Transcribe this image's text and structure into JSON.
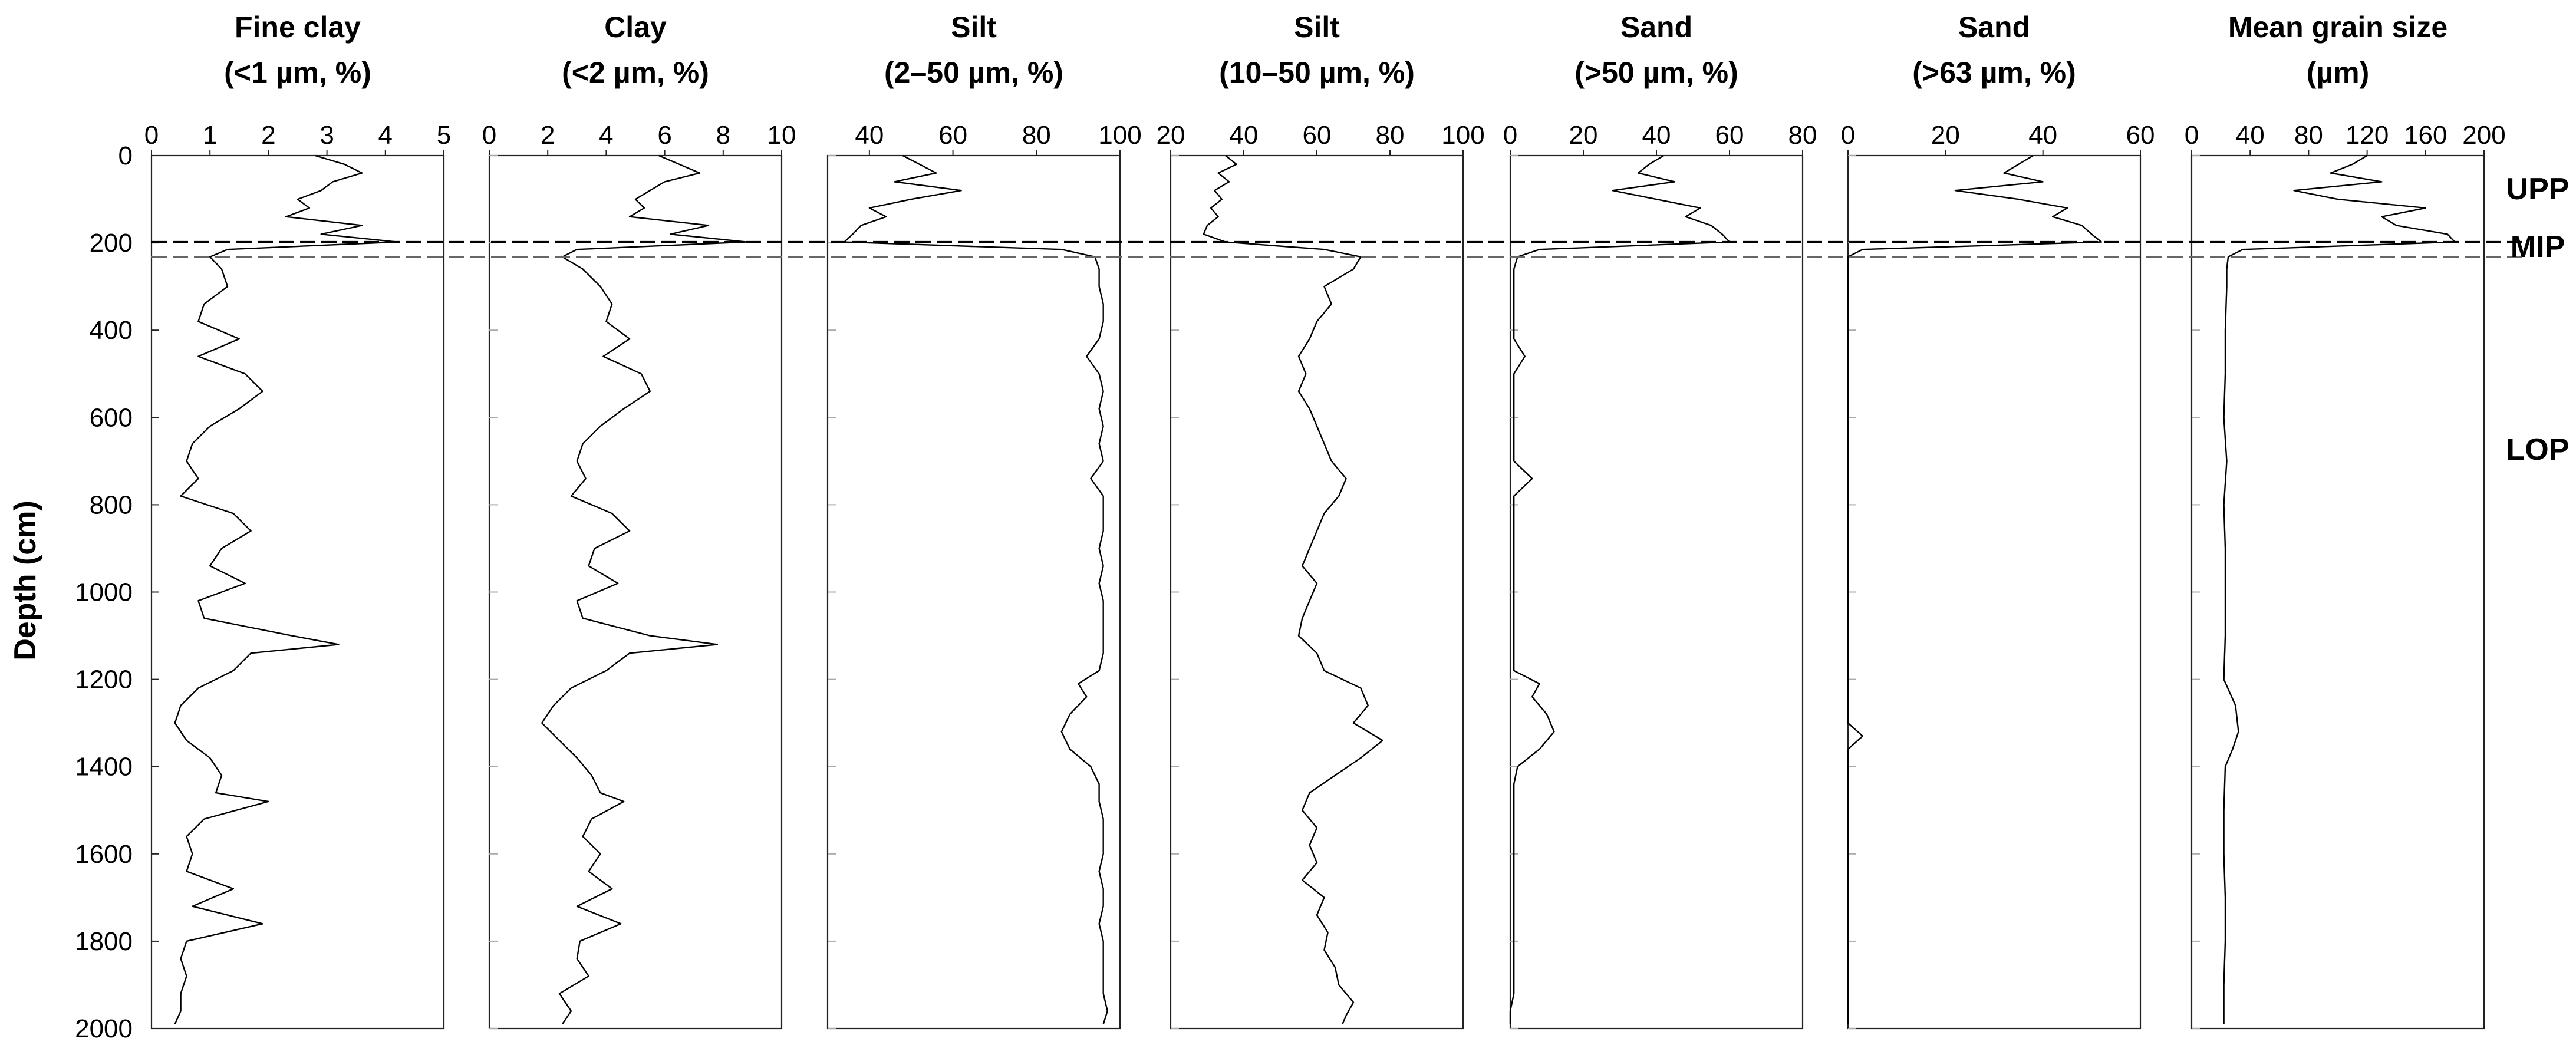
{
  "figure": {
    "ylabel": "Depth (cm)",
    "y_ticks": [
      0,
      200,
      400,
      600,
      800,
      1000,
      1200,
      1400,
      1600,
      1800,
      2000
    ],
    "zones": [
      {
        "label": "UPP",
        "depth": 80
      },
      {
        "label": "MIP",
        "depth": 215
      },
      {
        "label": "LOP",
        "depth": 680
      }
    ],
    "boundaries": [
      {
        "depth": 198,
        "style": "dashed",
        "color": "#000000"
      },
      {
        "depth": 232,
        "style": "dashed",
        "color": "#000000"
      }
    ],
    "line_color": "#000000",
    "gray_tick_color": "#aaaaaa"
  },
  "chart_data": [
    {
      "type": "line",
      "title_line1": "Fine clay",
      "title_line2": "(<1 µm, %)",
      "xlim": [
        0,
        5
      ],
      "x_ticks": [
        0,
        1,
        2,
        3,
        4,
        5
      ],
      "ylim": [
        2000,
        0
      ],
      "series": [
        {
          "depth": [
            0,
            20,
            40,
            60,
            80,
            100,
            120,
            140,
            160,
            180,
            198,
            215,
            232,
            260,
            300,
            340,
            380,
            420,
            460,
            500,
            540,
            580,
            620,
            660,
            700,
            740,
            780,
            820,
            860,
            900,
            940,
            980,
            1020,
            1060,
            1100,
            1120,
            1140,
            1180,
            1220,
            1260,
            1300,
            1340,
            1380,
            1420,
            1460,
            1480,
            1520,
            1560,
            1600,
            1640,
            1680,
            1720,
            1760,
            1800,
            1840,
            1880,
            1920,
            1960,
            1990
          ],
          "value": [
            2.8,
            3.3,
            3.6,
            3.1,
            2.9,
            2.5,
            2.7,
            2.3,
            3.6,
            2.9,
            4.2,
            1.3,
            1.0,
            1.2,
            1.3,
            0.9,
            0.8,
            1.5,
            0.8,
            1.6,
            1.9,
            1.5,
            1.0,
            0.7,
            0.6,
            0.8,
            0.5,
            1.4,
            1.7,
            1.2,
            1.0,
            1.6,
            0.8,
            0.9,
            2.4,
            3.2,
            1.7,
            1.4,
            0.8,
            0.5,
            0.4,
            0.6,
            1.0,
            1.2,
            1.1,
            2.0,
            0.9,
            0.6,
            0.7,
            0.6,
            1.4,
            0.7,
            1.9,
            0.6,
            0.5,
            0.6,
            0.5,
            0.5,
            0.4
          ]
        }
      ]
    },
    {
      "type": "line",
      "title_line1": "Clay",
      "title_line2": "(<2 µm, %)",
      "xlim": [
        0,
        10
      ],
      "x_ticks": [
        0,
        2,
        4,
        6,
        8,
        10
      ],
      "ylim": [
        2000,
        0
      ],
      "series": [
        {
          "depth": [
            0,
            20,
            40,
            60,
            80,
            100,
            120,
            140,
            160,
            180,
            198,
            215,
            232,
            260,
            300,
            340,
            380,
            420,
            460,
            500,
            540,
            580,
            620,
            660,
            700,
            740,
            780,
            820,
            860,
            900,
            940,
            980,
            1020,
            1060,
            1100,
            1120,
            1140,
            1180,
            1220,
            1260,
            1300,
            1340,
            1380,
            1420,
            1460,
            1480,
            1520,
            1560,
            1600,
            1640,
            1680,
            1720,
            1760,
            1800,
            1840,
            1880,
            1920,
            1960,
            1990
          ],
          "value": [
            5.8,
            6.5,
            7.2,
            6.0,
            5.5,
            5.0,
            5.3,
            4.8,
            7.5,
            6.2,
            8.8,
            3.0,
            2.5,
            3.2,
            3.8,
            4.2,
            4.0,
            4.8,
            3.9,
            5.2,
            5.5,
            4.6,
            3.8,
            3.2,
            3.0,
            3.3,
            2.8,
            4.2,
            4.8,
            3.6,
            3.4,
            4.4,
            3.0,
            3.2,
            5.5,
            7.8,
            4.8,
            4.0,
            2.8,
            2.2,
            1.8,
            2.4,
            3.0,
            3.5,
            3.8,
            4.6,
            3.5,
            3.2,
            3.8,
            3.4,
            4.2,
            3.0,
            4.5,
            3.1,
            3.0,
            3.4,
            2.4,
            2.8,
            2.5
          ]
        }
      ]
    },
    {
      "type": "line",
      "title_line1": "Silt",
      "title_line2": "(2–50 µm, %)",
      "xlim": [
        30,
        100
      ],
      "x_ticks": [
        40,
        60,
        80,
        100
      ],
      "ylim": [
        2000,
        0
      ],
      "series": [
        {
          "depth": [
            0,
            20,
            40,
            60,
            80,
            100,
            120,
            140,
            160,
            180,
            198,
            215,
            232,
            260,
            300,
            340,
            380,
            420,
            460,
            500,
            540,
            580,
            620,
            660,
            700,
            740,
            780,
            820,
            860,
            900,
            940,
            980,
            1020,
            1060,
            1100,
            1140,
            1180,
            1210,
            1240,
            1280,
            1320,
            1360,
            1400,
            1440,
            1480,
            1520,
            1560,
            1600,
            1640,
            1680,
            1720,
            1760,
            1800,
            1840,
            1880,
            1920,
            1960,
            1990
          ],
          "value": [
            48,
            52,
            56,
            46,
            62,
            50,
            40,
            44,
            38,
            36,
            34,
            86,
            94,
            95,
            95,
            96,
            96,
            95,
            92,
            95,
            96,
            95,
            96,
            95,
            96,
            93,
            96,
            96,
            96,
            95,
            96,
            95,
            96,
            96,
            96,
            96,
            95,
            90,
            92,
            88,
            86,
            88,
            93,
            95,
            95,
            96,
            96,
            96,
            95,
            96,
            96,
            95,
            96,
            96,
            96,
            96,
            97,
            96
          ]
        }
      ]
    },
    {
      "type": "line",
      "title_line1": "Silt",
      "title_line2": "(10–50 µm, %)",
      "xlim": [
        20,
        100
      ],
      "x_ticks": [
        20,
        40,
        60,
        80,
        100
      ],
      "ylim": [
        2000,
        0
      ],
      "series": [
        {
          "depth": [
            0,
            20,
            40,
            60,
            80,
            100,
            120,
            140,
            160,
            180,
            198,
            215,
            232,
            260,
            300,
            340,
            380,
            420,
            460,
            500,
            540,
            580,
            620,
            660,
            700,
            740,
            780,
            820,
            860,
            900,
            940,
            980,
            1020,
            1060,
            1100,
            1140,
            1180,
            1220,
            1260,
            1300,
            1340,
            1380,
            1420,
            1460,
            1500,
            1540,
            1580,
            1620,
            1660,
            1700,
            1740,
            1780,
            1820,
            1860,
            1900,
            1940,
            1970,
            1990
          ],
          "value": [
            35,
            38,
            33,
            36,
            32,
            34,
            31,
            33,
            30,
            29,
            35,
            62,
            72,
            70,
            62,
            64,
            60,
            58,
            55,
            57,
            55,
            58,
            60,
            62,
            64,
            68,
            66,
            62,
            60,
            58,
            56,
            60,
            58,
            56,
            55,
            60,
            62,
            72,
            74,
            70,
            78,
            72,
            65,
            58,
            56,
            60,
            58,
            60,
            56,
            62,
            60,
            63,
            62,
            65,
            66,
            70,
            68,
            67
          ]
        }
      ]
    },
    {
      "type": "line",
      "title_line1": "Sand",
      "title_line2": "(>50 µm, %)",
      "xlim": [
        0,
        80
      ],
      "x_ticks": [
        0,
        20,
        40,
        60,
        80
      ],
      "ylim": [
        2000,
        0
      ],
      "series": [
        {
          "depth": [
            0,
            20,
            40,
            60,
            80,
            100,
            120,
            140,
            160,
            180,
            198,
            215,
            232,
            260,
            300,
            340,
            380,
            420,
            460,
            500,
            540,
            580,
            620,
            660,
            700,
            740,
            780,
            820,
            860,
            900,
            940,
            980,
            1020,
            1060,
            1100,
            1140,
            1180,
            1210,
            1240,
            1280,
            1320,
            1360,
            1400,
            1440,
            1480,
            1520,
            1560,
            1600,
            1640,
            1680,
            1720,
            1760,
            1800,
            1840,
            1880,
            1920,
            1960,
            1990
          ],
          "value": [
            42,
            38,
            35,
            45,
            28,
            40,
            52,
            48,
            55,
            58,
            60,
            8,
            2,
            1,
            1,
            1,
            1,
            1,
            4,
            1,
            1,
            1,
            1,
            1,
            1,
            6,
            1,
            1,
            1,
            1,
            1,
            1,
            1,
            1,
            1,
            1,
            1,
            8,
            6,
            10,
            12,
            8,
            2,
            1,
            1,
            1,
            1,
            1,
            1,
            1,
            1,
            1,
            1,
            1,
            1,
            1,
            0,
            0
          ]
        }
      ]
    },
    {
      "type": "line",
      "title_line1": "Sand",
      "title_line2": "(>63 µm, %)",
      "xlim": [
        0,
        60
      ],
      "x_ticks": [
        0,
        20,
        40,
        60
      ],
      "ylim": [
        2000,
        0
      ],
      "series": [
        {
          "depth": [
            0,
            20,
            40,
            60,
            80,
            100,
            120,
            140,
            160,
            180,
            198,
            215,
            232,
            260,
            300,
            400,
            600,
            800,
            1000,
            1200,
            1300,
            1330,
            1360,
            1400,
            1600,
            1800,
            1990
          ],
          "value": [
            38,
            35,
            32,
            40,
            22,
            35,
            45,
            42,
            48,
            50,
            52,
            3,
            0,
            0,
            0,
            0,
            0,
            0,
            0,
            0,
            0,
            3,
            0,
            0,
            0,
            0,
            0
          ]
        }
      ]
    },
    {
      "type": "line",
      "title_line1": "Mean grain size",
      "title_line2": "(µm)",
      "xlim": [
        0,
        200
      ],
      "x_ticks": [
        0,
        40,
        80,
        120,
        160,
        200
      ],
      "ylim": [
        2000,
        0
      ],
      "series": [
        {
          "depth": [
            0,
            20,
            40,
            60,
            80,
            100,
            120,
            140,
            160,
            180,
            198,
            215,
            232,
            260,
            300,
            400,
            500,
            600,
            700,
            800,
            900,
            1000,
            1100,
            1200,
            1260,
            1320,
            1360,
            1400,
            1500,
            1600,
            1700,
            1800,
            1900,
            1990
          ],
          "value": [
            120,
            110,
            95,
            130,
            70,
            100,
            160,
            130,
            140,
            175,
            180,
            35,
            25,
            24,
            24,
            23,
            23,
            22,
            24,
            22,
            23,
            23,
            23,
            22,
            30,
            32,
            28,
            23,
            22,
            22,
            23,
            23,
            22,
            22
          ]
        }
      ]
    }
  ]
}
